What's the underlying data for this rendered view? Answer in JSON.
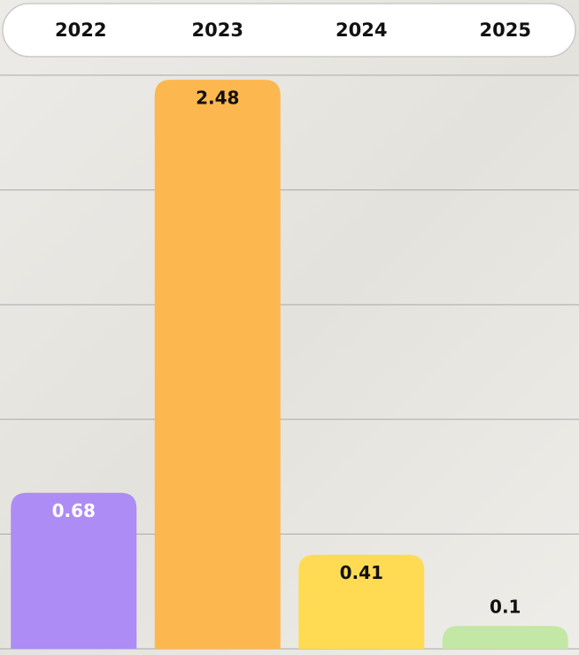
{
  "chart_data": {
    "type": "bar",
    "categories": [
      "2022",
      "2023",
      "2024",
      "2025"
    ],
    "values": [
      0.68,
      2.48,
      0.41,
      0.1
    ],
    "colors": [
      "#ad8cf5",
      "#fdb74f",
      "#fedb52",
      "#c3e8a6"
    ],
    "value_label_colors": [
      "#ffffff",
      "#111111",
      "#111111",
      "#111111"
    ],
    "ylim": [
      0,
      2.5
    ],
    "yticks": [
      0,
      0.5,
      1,
      1.5,
      2,
      2.5
    ],
    "grid": true
  }
}
